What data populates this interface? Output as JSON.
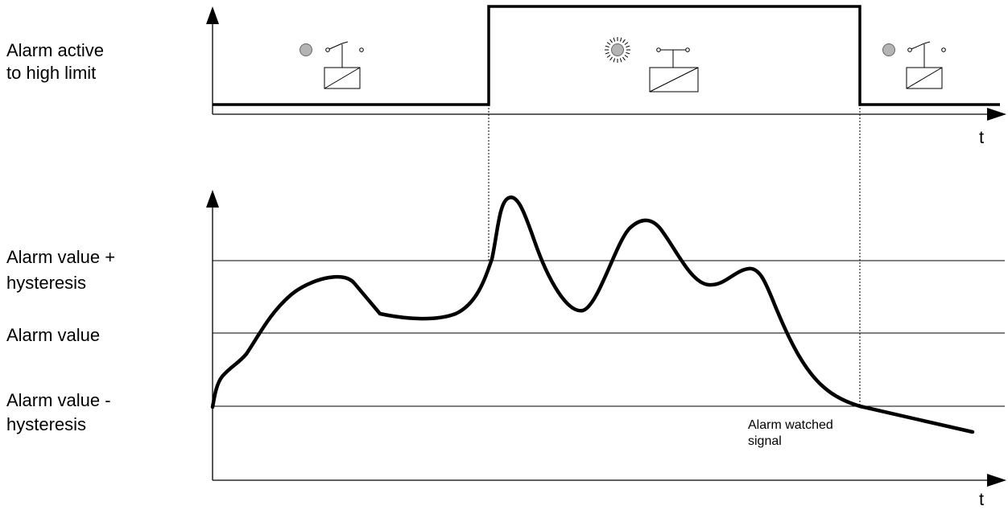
{
  "top_panel": {
    "label_line1": "Alarm active",
    "label_line2": "to high limit",
    "time_label": "t",
    "states": [
      "inactive",
      "active",
      "inactive"
    ]
  },
  "bottom_panel": {
    "label_upper_line1": "Alarm value +",
    "label_upper_line2": "hysteresis",
    "label_mid": "Alarm value",
    "label_lower_line1": "Alarm value -",
    "label_lower_line2": "hysteresis",
    "time_label": "t",
    "signal_label_line1": "Alarm watched",
    "signal_label_line2": "signal"
  },
  "colors": {
    "line": "#000000",
    "lamp_off": "#b4b4b4",
    "background": "#ffffff"
  }
}
